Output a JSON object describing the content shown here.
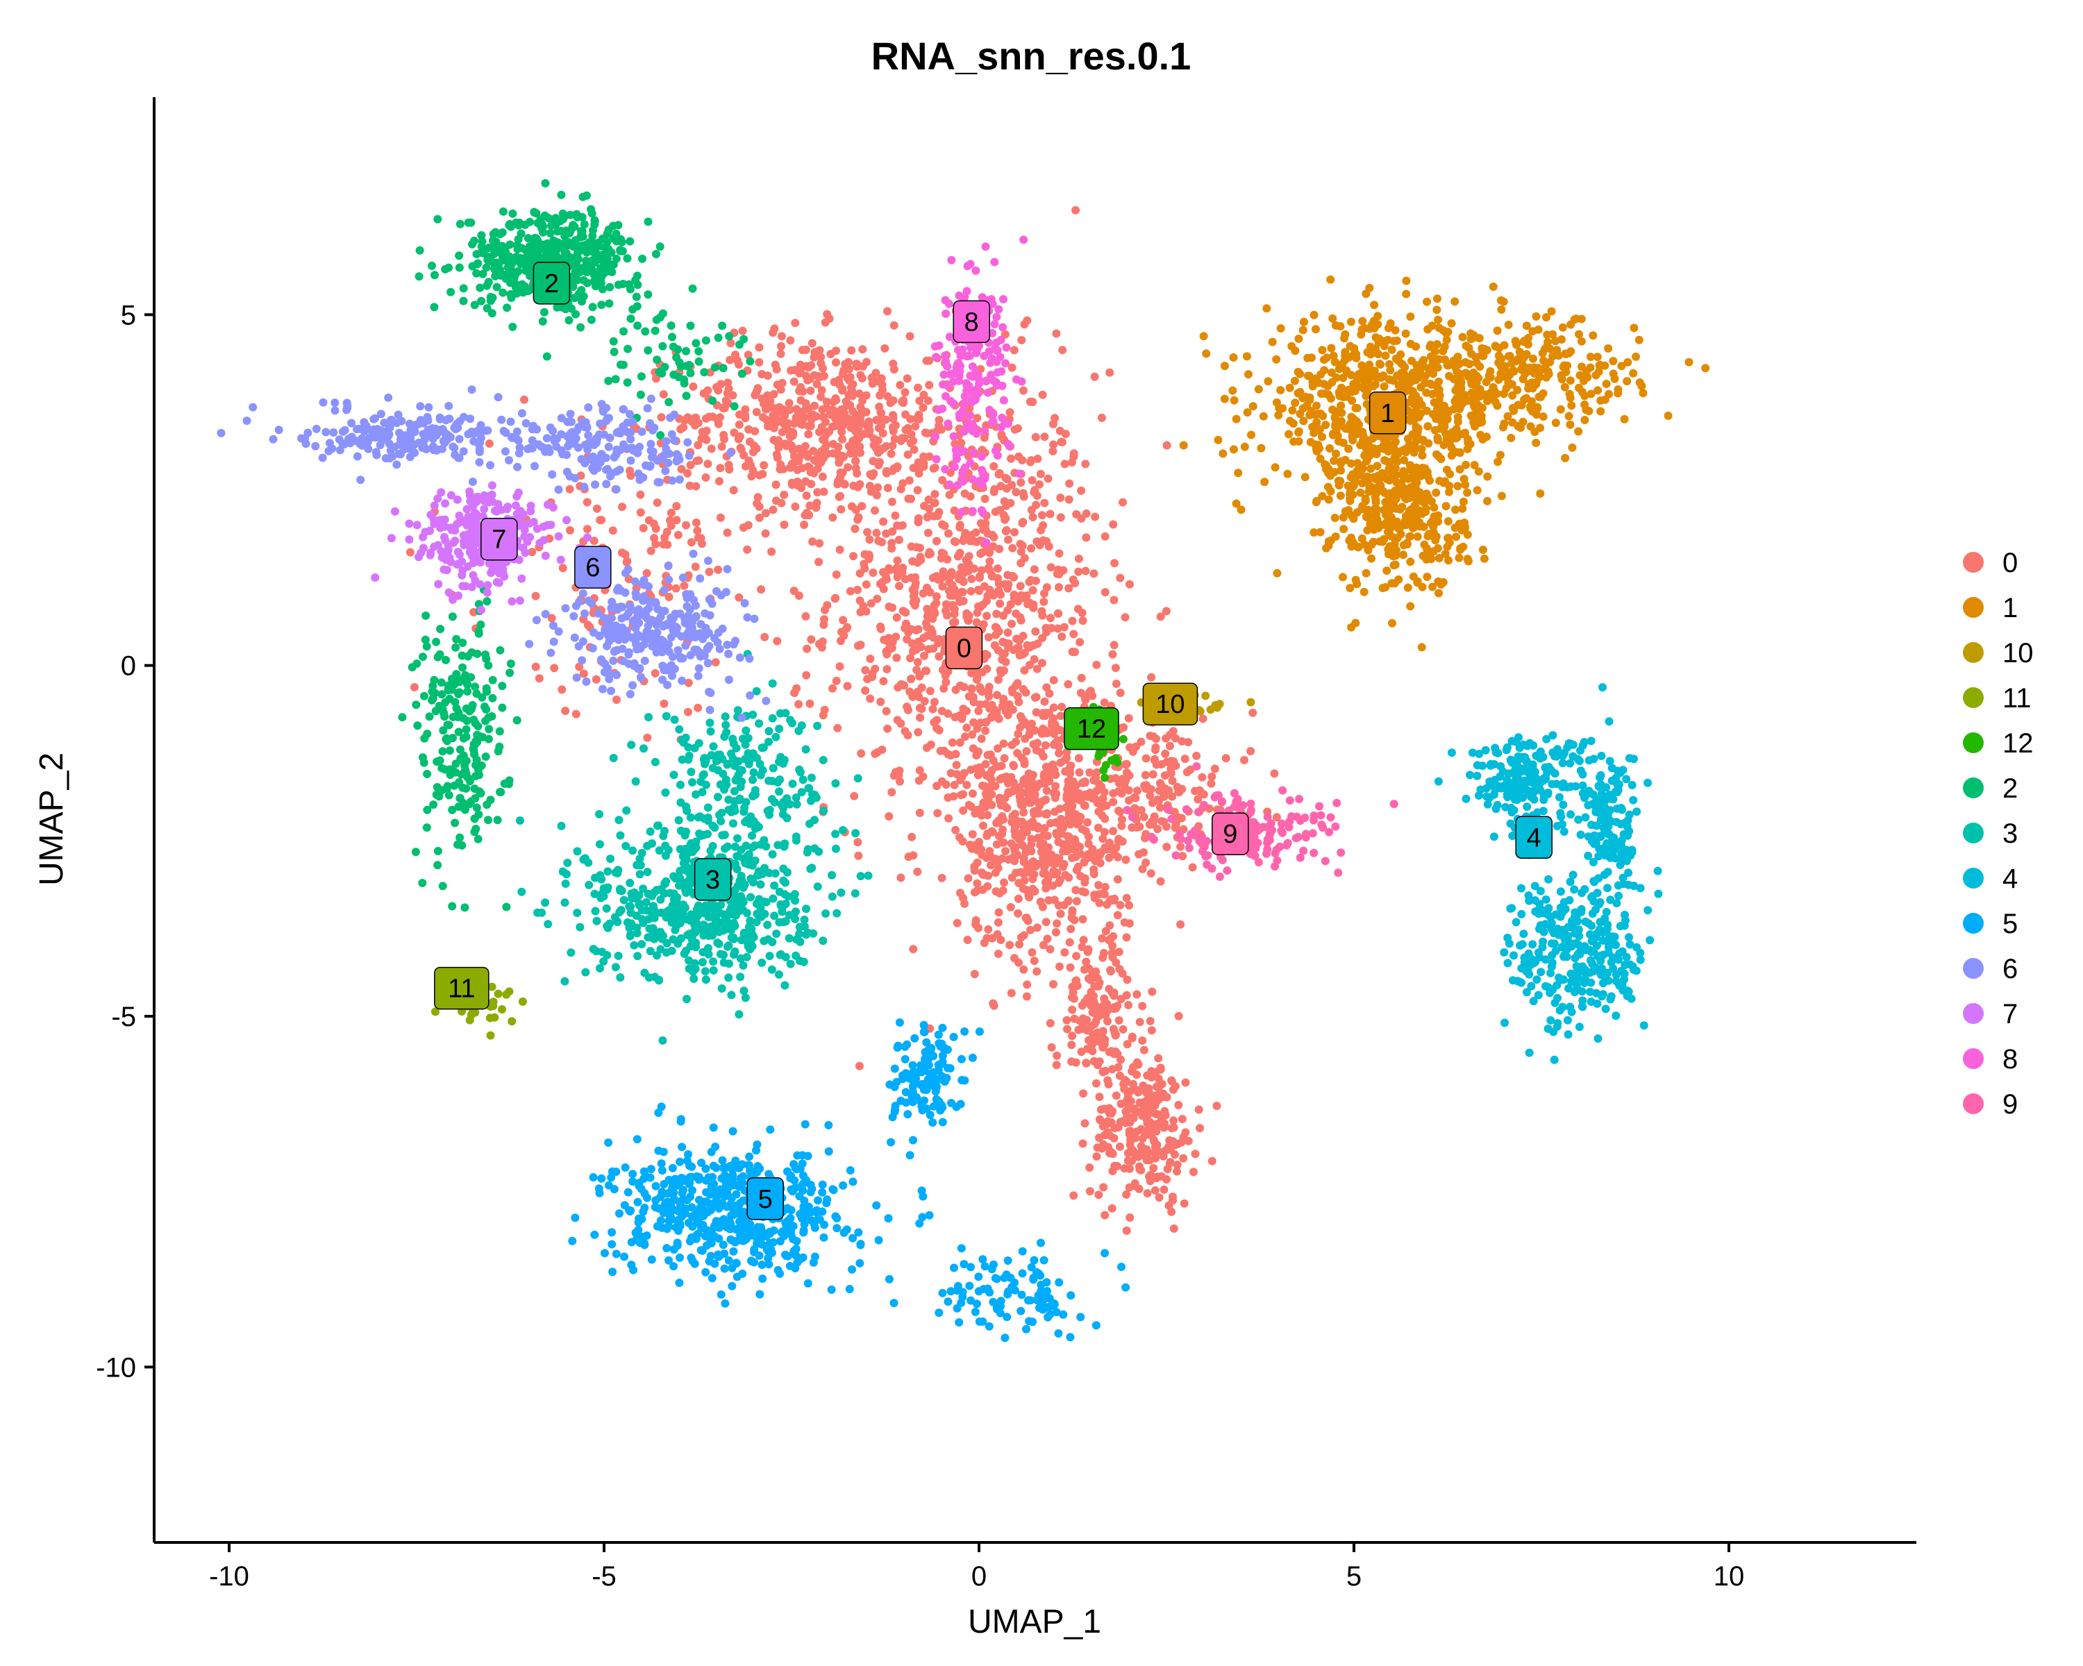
{
  "chart_data": {
    "type": "scatter",
    "title": "RNA_snn_res.0.1",
    "xlabel": "UMAP_1",
    "ylabel": "UMAP_2",
    "xlim": [
      -11,
      12.5
    ],
    "ylim": [
      -12.5,
      8.1
    ],
    "x_ticks": [
      -10,
      -5,
      0,
      5,
      10
    ],
    "y_ticks": [
      -10,
      -5,
      0,
      5
    ],
    "grid": false,
    "legend_position": "right",
    "legend": [
      "0",
      "1",
      "10",
      "11",
      "12",
      "2",
      "3",
      "4",
      "5",
      "6",
      "7",
      "8",
      "9"
    ],
    "colors": {
      "0": "#F8766D",
      "1": "#E18A00",
      "10": "#BE9C00",
      "11": "#8CAB00",
      "12": "#24B700",
      "2": "#00BE70",
      "3": "#00C1AB",
      "4": "#00BBDA",
      "5": "#00ACFC",
      "6": "#8B93FF",
      "7": "#D575FE",
      "8": "#F962DD",
      "9": "#FF65AC"
    },
    "cluster_labels": [
      {
        "label": "0",
        "x": -0.2,
        "y": 0.25
      },
      {
        "label": "1",
        "x": 5.45,
        "y": 3.6
      },
      {
        "label": "2",
        "x": -5.7,
        "y": 5.45
      },
      {
        "label": "3",
        "x": -3.55,
        "y": -3.05
      },
      {
        "label": "4",
        "x": 7.4,
        "y": -2.45
      },
      {
        "label": "5",
        "x": -2.85,
        "y": -7.6
      },
      {
        "label": "6",
        "x": -5.15,
        "y": 1.4
      },
      {
        "label": "7",
        "x": -6.4,
        "y": 1.8
      },
      {
        "label": "8",
        "x": -0.1,
        "y": 4.9
      },
      {
        "label": "9",
        "x": 3.35,
        "y": -2.4
      },
      {
        "label": "10",
        "x": 2.55,
        "y": -0.55
      },
      {
        "label": "11",
        "x": -6.9,
        "y": -4.6
      },
      {
        "label": "12",
        "x": 1.5,
        "y": -0.9
      }
    ],
    "series": [
      {
        "name": "0",
        "approx_regions": [
          {
            "x": -0.2,
            "y": 1.0,
            "sx": 0.9,
            "sy": 1.6,
            "n": 900
          },
          {
            "x": -2.2,
            "y": 3.5,
            "sx": 0.9,
            "sy": 0.6,
            "n": 500
          },
          {
            "x": 0.9,
            "y": -2.2,
            "sx": 0.6,
            "sy": 1.0,
            "n": 650
          },
          {
            "x": 2.2,
            "y": -6.6,
            "sx": 0.35,
            "sy": 0.55,
            "n": 250
          },
          {
            "x": 1.6,
            "y": -5.0,
            "sx": 0.3,
            "sy": 0.6,
            "n": 150
          },
          {
            "x": -4.5,
            "y": 1.4,
            "sx": 1.0,
            "sy": 1.0,
            "n": 180
          },
          {
            "x": 2.5,
            "y": -1.8,
            "sx": 0.6,
            "sy": 0.5,
            "n": 140
          }
        ]
      },
      {
        "name": "1",
        "approx_regions": [
          {
            "x": 5.4,
            "y": 3.7,
            "sx": 0.8,
            "sy": 0.6,
            "n": 650
          },
          {
            "x": 5.6,
            "y": 2.2,
            "sx": 0.45,
            "sy": 0.6,
            "n": 350
          },
          {
            "x": 7.4,
            "y": 4.1,
            "sx": 0.7,
            "sy": 0.4,
            "n": 250
          }
        ]
      },
      {
        "name": "2",
        "approx_regions": [
          {
            "x": -5.7,
            "y": 5.8,
            "sx": 0.6,
            "sy": 0.35,
            "n": 450
          },
          {
            "x": -6.9,
            "y": -1.0,
            "sx": 0.3,
            "sy": 0.9,
            "n": 220
          },
          {
            "x": -4.2,
            "y": 4.4,
            "sx": 0.5,
            "sy": 0.4,
            "n": 60
          }
        ]
      },
      {
        "name": "3",
        "approx_regions": [
          {
            "x": -3.7,
            "y": -3.4,
            "sx": 0.75,
            "sy": 0.55,
            "n": 550
          },
          {
            "x": -3.2,
            "y": -1.6,
            "sx": 0.6,
            "sy": 0.6,
            "n": 220
          }
        ]
      },
      {
        "name": "4",
        "approx_regions": [
          {
            "x": 7.3,
            "y": -1.6,
            "sx": 0.4,
            "sy": 0.3,
            "n": 200
          },
          {
            "x": 8.0,
            "y": -4.1,
            "sx": 0.45,
            "sy": 0.55,
            "n": 300
          },
          {
            "x": 8.4,
            "y": -2.2,
            "sx": 0.2,
            "sy": 0.5,
            "n": 140
          }
        ]
      },
      {
        "name": "5",
        "approx_regions": [
          {
            "x": -3.3,
            "y": -7.8,
            "sx": 0.8,
            "sy": 0.45,
            "n": 550
          },
          {
            "x": -0.7,
            "y": -5.9,
            "sx": 0.25,
            "sy": 0.35,
            "n": 120
          },
          {
            "x": 0.5,
            "y": -8.9,
            "sx": 0.45,
            "sy": 0.3,
            "n": 100
          }
        ]
      },
      {
        "name": "6",
        "approx_regions": [
          {
            "x": -7.5,
            "y": 3.3,
            "sx": 0.8,
            "sy": 0.2,
            "n": 220
          },
          {
            "x": -4.3,
            "y": 0.5,
            "sx": 0.6,
            "sy": 0.4,
            "n": 280
          },
          {
            "x": -4.9,
            "y": 3.1,
            "sx": 0.6,
            "sy": 0.3,
            "n": 160
          }
        ]
      },
      {
        "name": "7",
        "approx_regions": [
          {
            "x": -6.6,
            "y": 1.8,
            "sx": 0.45,
            "sy": 0.35,
            "n": 260
          }
        ]
      },
      {
        "name": "8",
        "approx_regions": [
          {
            "x": -0.1,
            "y": 4.1,
            "sx": 0.25,
            "sy": 0.8,
            "n": 200
          }
        ]
      },
      {
        "name": "9",
        "approx_regions": [
          {
            "x": 3.6,
            "y": -2.4,
            "sx": 0.6,
            "sy": 0.25,
            "n": 160
          }
        ]
      },
      {
        "name": "10",
        "approx_regions": [
          {
            "x": 2.7,
            "y": -0.6,
            "sx": 0.3,
            "sy": 0.1,
            "n": 30
          }
        ]
      },
      {
        "name": "11",
        "approx_regions": [
          {
            "x": -6.6,
            "y": -4.9,
            "sx": 0.25,
            "sy": 0.15,
            "n": 30
          }
        ]
      },
      {
        "name": "12",
        "approx_regions": [
          {
            "x": 1.6,
            "y": -1.2,
            "sx": 0.15,
            "sy": 0.3,
            "n": 25
          }
        ]
      }
    ]
  }
}
